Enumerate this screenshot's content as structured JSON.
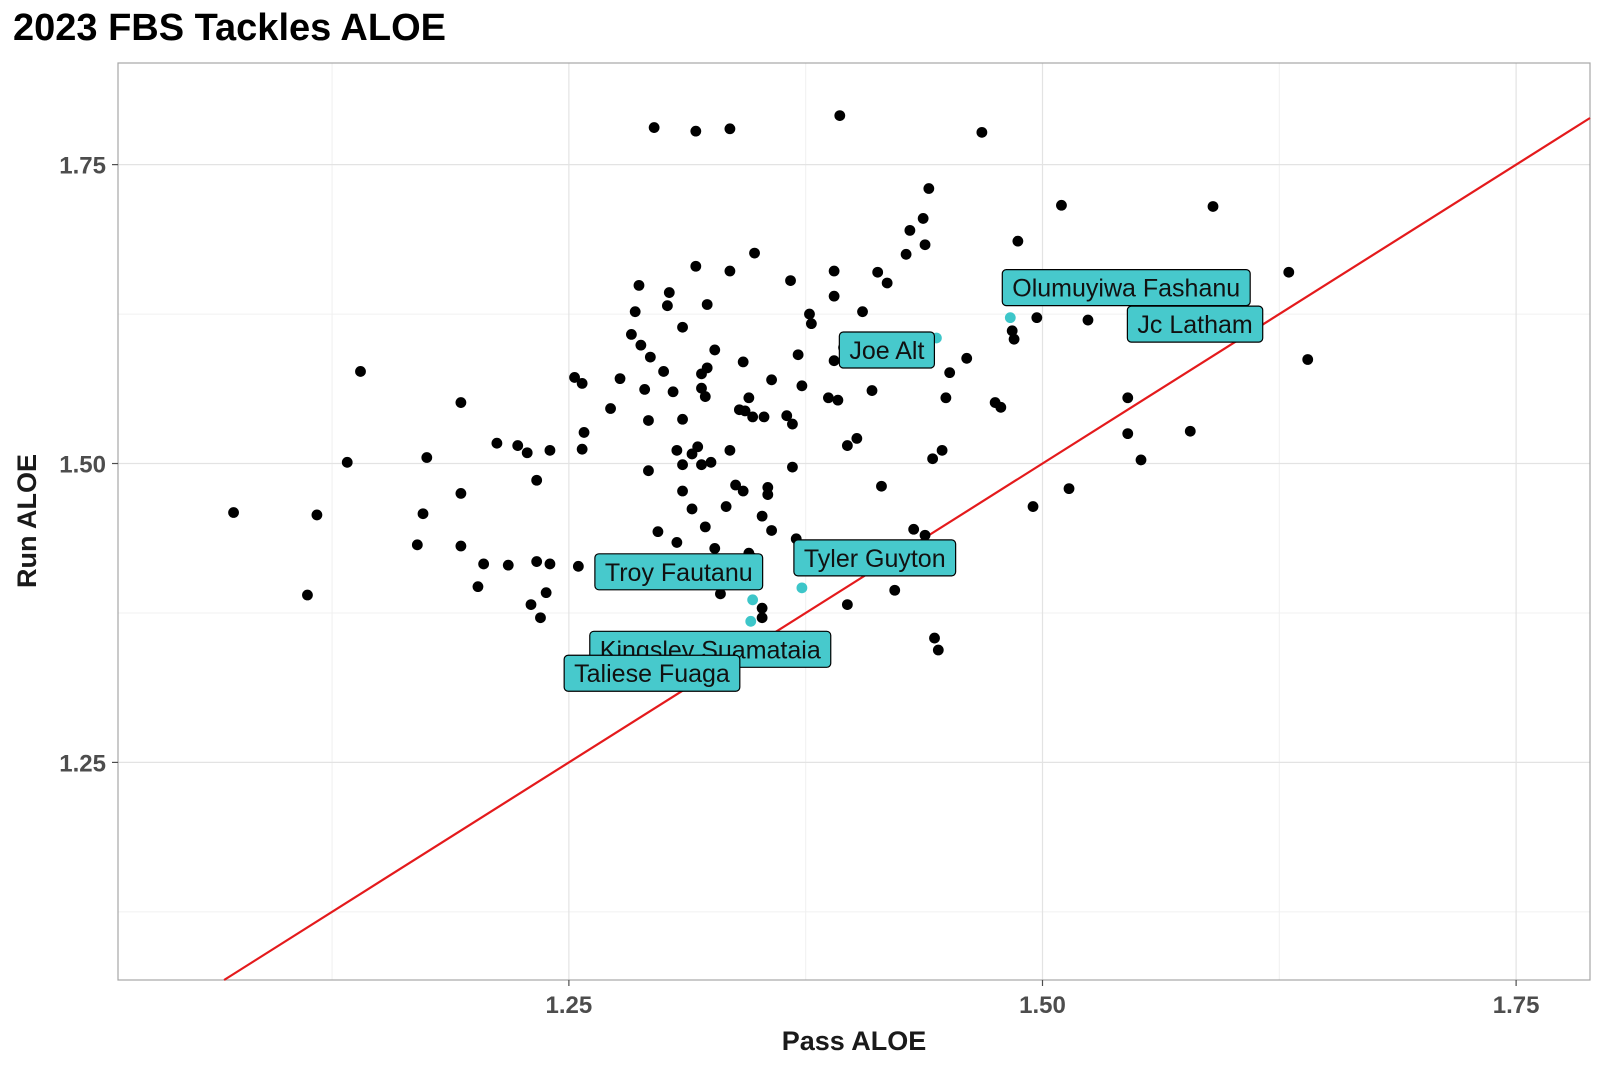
{
  "chart_data": {
    "type": "scatter",
    "title": "2023 FBS Tackles ALOE",
    "xlabel": "Pass ALOE",
    "ylabel": "Run ALOE",
    "xlim": [
      1.012,
      1.789
    ],
    "ylim": [
      1.068,
      1.835
    ],
    "x_ticks": [
      1.25,
      1.5,
      1.75
    ],
    "x_tick_labels": [
      "1.25",
      "1.50",
      "1.75"
    ],
    "y_ticks": [
      1.25,
      1.5,
      1.75
    ],
    "y_tick_labels": [
      "1.25",
      "1.50",
      "1.75"
    ],
    "grid": true,
    "reference_line": {
      "type": "identity",
      "color": "#e41a1c"
    },
    "colors": {
      "point": "#000000",
      "highlight": "#3dc6c9",
      "label_fill": "#47c9cc"
    },
    "points": [
      {
        "x": 1.073,
        "y": 1.459
      },
      {
        "x": 1.112,
        "y": 1.39
      },
      {
        "x": 1.117,
        "y": 1.457
      },
      {
        "x": 1.133,
        "y": 1.501
      },
      {
        "x": 1.14,
        "y": 1.577
      },
      {
        "x": 1.17,
        "y": 1.432
      },
      {
        "x": 1.173,
        "y": 1.458
      },
      {
        "x": 1.175,
        "y": 1.505
      },
      {
        "x": 1.193,
        "y": 1.431
      },
      {
        "x": 1.193,
        "y": 1.475
      },
      {
        "x": 1.193,
        "y": 1.551
      },
      {
        "x": 1.202,
        "y": 1.397
      },
      {
        "x": 1.205,
        "y": 1.416
      },
      {
        "x": 1.212,
        "y": 1.517
      },
      {
        "x": 1.218,
        "y": 1.415
      },
      {
        "x": 1.223,
        "y": 1.515
      },
      {
        "x": 1.228,
        "y": 1.509
      },
      {
        "x": 1.23,
        "y": 1.382
      },
      {
        "x": 1.233,
        "y": 1.418
      },
      {
        "x": 1.233,
        "y": 1.486
      },
      {
        "x": 1.235,
        "y": 1.371
      },
      {
        "x": 1.238,
        "y": 1.392
      },
      {
        "x": 1.24,
        "y": 1.416
      },
      {
        "x": 1.24,
        "y": 1.511
      },
      {
        "x": 1.253,
        "y": 1.572
      },
      {
        "x": 1.255,
        "y": 1.414
      },
      {
        "x": 1.257,
        "y": 1.512
      },
      {
        "x": 1.257,
        "y": 1.567
      },
      {
        "x": 1.258,
        "y": 1.526
      },
      {
        "x": 1.267,
        "y": 1.415
      },
      {
        "x": 1.272,
        "y": 1.546
      },
      {
        "x": 1.277,
        "y": 1.571
      },
      {
        "x": 1.28,
        "y": 1.41
      },
      {
        "x": 1.283,
        "y": 1.608
      },
      {
        "x": 1.285,
        "y": 1.627
      },
      {
        "x": 1.287,
        "y": 1.649
      },
      {
        "x": 1.288,
        "y": 1.599
      },
      {
        "x": 1.29,
        "y": 1.562
      },
      {
        "x": 1.292,
        "y": 1.494
      },
      {
        "x": 1.292,
        "y": 1.536
      },
      {
        "x": 1.293,
        "y": 1.589
      },
      {
        "x": 1.295,
        "y": 1.781
      },
      {
        "x": 1.297,
        "y": 1.443
      },
      {
        "x": 1.3,
        "y": 1.577
      },
      {
        "x": 1.302,
        "y": 1.632
      },
      {
        "x": 1.303,
        "y": 1.643
      },
      {
        "x": 1.305,
        "y": 1.56
      },
      {
        "x": 1.307,
        "y": 1.434
      },
      {
        "x": 1.307,
        "y": 1.511
      },
      {
        "x": 1.31,
        "y": 1.537
      },
      {
        "x": 1.31,
        "y": 1.614
      },
      {
        "x": 1.31,
        "y": 1.477
      },
      {
        "x": 1.31,
        "y": 1.499
      },
      {
        "x": 1.315,
        "y": 1.462
      },
      {
        "x": 1.315,
        "y": 1.508
      },
      {
        "x": 1.317,
        "y": 1.665
      },
      {
        "x": 1.317,
        "y": 1.778
      },
      {
        "x": 1.318,
        "y": 1.514
      },
      {
        "x": 1.32,
        "y": 1.563
      },
      {
        "x": 1.32,
        "y": 1.499
      },
      {
        "x": 1.32,
        "y": 1.575
      },
      {
        "x": 1.322,
        "y": 1.447
      },
      {
        "x": 1.322,
        "y": 1.556
      },
      {
        "x": 1.323,
        "y": 1.58
      },
      {
        "x": 1.323,
        "y": 1.633
      },
      {
        "x": 1.325,
        "y": 1.501
      },
      {
        "x": 1.327,
        "y": 1.595
      },
      {
        "x": 1.327,
        "y": 1.429
      },
      {
        "x": 1.33,
        "y": 1.391
      },
      {
        "x": 1.333,
        "y": 1.464
      },
      {
        "x": 1.335,
        "y": 1.661
      },
      {
        "x": 1.335,
        "y": 1.511
      },
      {
        "x": 1.335,
        "y": 1.78
      },
      {
        "x": 1.338,
        "y": 1.482
      },
      {
        "x": 1.34,
        "y": 1.545
      },
      {
        "x": 1.342,
        "y": 1.477
      },
      {
        "x": 1.342,
        "y": 1.585
      },
      {
        "x": 1.343,
        "y": 1.544
      },
      {
        "x": 1.345,
        "y": 1.555
      },
      {
        "x": 1.345,
        "y": 1.425
      },
      {
        "x": 1.347,
        "y": 1.539
      },
      {
        "x": 1.347,
        "y": 1.421
      },
      {
        "x": 1.348,
        "y": 1.676
      },
      {
        "x": 1.352,
        "y": 1.379
      },
      {
        "x": 1.352,
        "y": 1.456
      },
      {
        "x": 1.352,
        "y": 1.371
      },
      {
        "x": 1.353,
        "y": 1.539
      },
      {
        "x": 1.355,
        "y": 1.474
      },
      {
        "x": 1.355,
        "y": 1.48
      },
      {
        "x": 1.357,
        "y": 1.57
      },
      {
        "x": 1.357,
        "y": 1.444
      },
      {
        "x": 1.365,
        "y": 1.54
      },
      {
        "x": 1.367,
        "y": 1.653
      },
      {
        "x": 1.368,
        "y": 1.533
      },
      {
        "x": 1.368,
        "y": 1.497
      },
      {
        "x": 1.37,
        "y": 1.437
      },
      {
        "x": 1.371,
        "y": 1.591
      },
      {
        "x": 1.373,
        "y": 1.565
      },
      {
        "x": 1.377,
        "y": 1.625
      },
      {
        "x": 1.378,
        "y": 1.617
      },
      {
        "x": 1.382,
        "y": 1.423
      },
      {
        "x": 1.387,
        "y": 1.555
      },
      {
        "x": 1.39,
        "y": 1.661
      },
      {
        "x": 1.39,
        "y": 1.64
      },
      {
        "x": 1.39,
        "y": 1.586
      },
      {
        "x": 1.392,
        "y": 1.553
      },
      {
        "x": 1.393,
        "y": 1.791
      },
      {
        "x": 1.395,
        "y": 1.597
      },
      {
        "x": 1.397,
        "y": 1.382
      },
      {
        "x": 1.397,
        "y": 1.515
      },
      {
        "x": 1.402,
        "y": 1.521
      },
      {
        "x": 1.405,
        "y": 1.627
      },
      {
        "x": 1.406,
        "y": 1.43
      },
      {
        "x": 1.41,
        "y": 1.561
      },
      {
        "x": 1.413,
        "y": 1.66
      },
      {
        "x": 1.415,
        "y": 1.481
      },
      {
        "x": 1.418,
        "y": 1.651
      },
      {
        "x": 1.422,
        "y": 1.394
      },
      {
        "x": 1.428,
        "y": 1.675
      },
      {
        "x": 1.43,
        "y": 1.695
      },
      {
        "x": 1.432,
        "y": 1.445
      },
      {
        "x": 1.437,
        "y": 1.705
      },
      {
        "x": 1.438,
        "y": 1.683
      },
      {
        "x": 1.438,
        "y": 1.44
      },
      {
        "x": 1.44,
        "y": 1.73
      },
      {
        "x": 1.442,
        "y": 1.504
      },
      {
        "x": 1.443,
        "y": 1.354
      },
      {
        "x": 1.445,
        "y": 1.344
      },
      {
        "x": 1.447,
        "y": 1.511
      },
      {
        "x": 1.449,
        "y": 1.555
      },
      {
        "x": 1.451,
        "y": 1.576
      },
      {
        "x": 1.46,
        "y": 1.588
      },
      {
        "x": 1.468,
        "y": 1.777
      },
      {
        "x": 1.475,
        "y": 1.551
      },
      {
        "x": 1.478,
        "y": 1.547
      },
      {
        "x": 1.484,
        "y": 1.611
      },
      {
        "x": 1.485,
        "y": 1.604
      },
      {
        "x": 1.487,
        "y": 1.686
      },
      {
        "x": 1.495,
        "y": 1.464
      },
      {
        "x": 1.497,
        "y": 1.622
      },
      {
        "x": 1.51,
        "y": 1.716
      },
      {
        "x": 1.514,
        "y": 1.479
      },
      {
        "x": 1.524,
        "y": 1.62
      },
      {
        "x": 1.545,
        "y": 1.525
      },
      {
        "x": 1.545,
        "y": 1.555
      },
      {
        "x": 1.552,
        "y": 1.503
      },
      {
        "x": 1.559,
        "y": 1.614
      },
      {
        "x": 1.568,
        "y": 1.613
      },
      {
        "x": 1.578,
        "y": 1.527
      },
      {
        "x": 1.59,
        "y": 1.715
      },
      {
        "x": 1.63,
        "y": 1.66
      },
      {
        "x": 1.64,
        "y": 1.587
      }
    ],
    "labeled_points": [
      {
        "name": "Olumuyiwa Fashanu",
        "x": 1.483,
        "y": 1.622
      },
      {
        "name": "Jc Latham",
        "x": 1.558,
        "y": 1.64
      },
      {
        "name": "Joe Alt",
        "x": 1.444,
        "y": 1.605
      },
      {
        "name": "Tyler Guyton",
        "x": 1.373,
        "y": 1.396
      },
      {
        "name": "Troy Fautanu",
        "x": 1.347,
        "y": 1.386
      },
      {
        "name": "Kingsley  Suamataia",
        "x": 1.346,
        "y": 1.368
      },
      {
        "name": "Taliese Fuaga",
        "x": 1.298,
        "y": 1.348
      }
    ],
    "label_anchor": {
      "Olumuyiwa Fashanu": "above-right",
      "Jc Latham": "below-right",
      "Joe Alt": "left",
      "Tyler Guyton": "above-right",
      "Troy Fautanu": "above-left",
      "Kingsley  Suamataia": "below-left",
      "Taliese Fuaga": "below-left"
    }
  }
}
